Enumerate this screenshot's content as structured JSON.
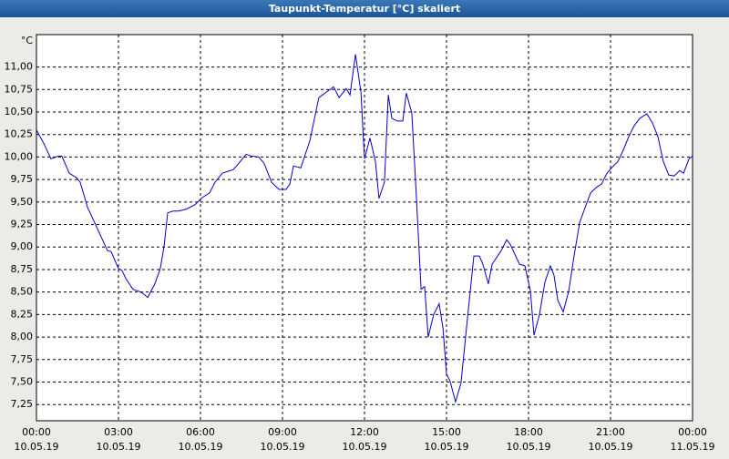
{
  "chart_data": {
    "type": "line",
    "title": "Taupunkt-Temperatur [°C] skaliert",
    "ylabel": "°C",
    "xlim": [
      0,
      24
    ],
    "xticks": [
      {
        "value": 0,
        "label": "00:00\n10.05.19"
      },
      {
        "value": 3,
        "label": "03:00\n10.05.19"
      },
      {
        "value": 6,
        "label": "06:00\n10.05.19"
      },
      {
        "value": 9,
        "label": "09:00\n10.05.19"
      },
      {
        "value": 12,
        "label": "12:00\n10.05.19"
      },
      {
        "value": 15,
        "label": "15:00\n10.05.19"
      },
      {
        "value": 18,
        "label": "18:00\n10.05.19"
      },
      {
        "value": 21,
        "label": "21:00\n10.05.19"
      },
      {
        "value": 24,
        "label": "00:00\n11.05.19"
      }
    ],
    "ylim": [
      7.07,
      11.36
    ],
    "yticks": [
      {
        "value": 7.25,
        "label": "7,25"
      },
      {
        "value": 7.5,
        "label": "7,50"
      },
      {
        "value": 7.75,
        "label": "7,75"
      },
      {
        "value": 8,
        "label": "8,00"
      },
      {
        "value": 8.25,
        "label": "8,25"
      },
      {
        "value": 8.5,
        "label": "8,50"
      },
      {
        "value": 8.75,
        "label": "8,75"
      },
      {
        "value": 9,
        "label": "9,00"
      },
      {
        "value": 9.25,
        "label": "9,25"
      },
      {
        "value": 9.5,
        "label": "9,50"
      },
      {
        "value": 9.75,
        "label": "9,75"
      },
      {
        "value": 10,
        "label": "10,00"
      },
      {
        "value": 10.25,
        "label": "10,25"
      },
      {
        "value": 10.5,
        "label": "10,50"
      },
      {
        "value": 10.75,
        "label": "10,75"
      },
      {
        "value": 11,
        "label": "11,00"
      }
    ],
    "grid": true,
    "x": [
      0,
      0.27,
      0.53,
      0.8,
      0.93,
      1.2,
      1.47,
      1.6,
      1.87,
      2.13,
      2.4,
      2.6,
      2.73,
      3,
      3.13,
      3.27,
      3.53,
      3.73,
      3.87,
      4.07,
      4.33,
      4.53,
      4.67,
      4.8,
      5,
      5.2,
      5.47,
      5.8,
      6.07,
      6.33,
      6.53,
      6.8,
      7.2,
      7.4,
      7.67,
      7.87,
      8.13,
      8.33,
      8.6,
      8.87,
      9.13,
      9.27,
      9.4,
      9.67,
      10,
      10.33,
      10.6,
      10.87,
      11.07,
      11.33,
      11.47,
      11.67,
      11.87,
      12,
      12.2,
      12.4,
      12.53,
      12.73,
      12.87,
      13,
      13.2,
      13.4,
      13.53,
      13.73,
      13.87,
      14.07,
      14.2,
      14.33,
      14.53,
      14.73,
      14.87,
      15,
      15.13,
      15.33,
      15.53,
      15.73,
      16,
      16.2,
      16.33,
      16.53,
      16.67,
      17,
      17.2,
      17.33,
      17.67,
      17.87,
      18.07,
      18.2,
      18.4,
      18.6,
      18.8,
      18.93,
      19.07,
      19.27,
      19.47,
      19.67,
      19.87,
      20.07,
      20.27,
      20.47,
      20.67,
      20.87,
      21.07,
      21.27,
      21.47,
      21.67,
      21.87,
      22.07,
      22.33,
      22.53,
      22.73,
      22.93,
      23.13,
      23.33,
      23.53,
      23.67,
      23.87,
      24
    ],
    "series": [
      {
        "color": "#0000cc",
        "values": [
          10.3,
          10.15,
          9.98,
          10.01,
          10.01,
          9.82,
          9.77,
          9.72,
          9.44,
          9.27,
          9.09,
          8.96,
          8.95,
          8.76,
          8.74,
          8.65,
          8.53,
          8.51,
          8.49,
          8.44,
          8.59,
          8.76,
          9.01,
          9.38,
          9.4,
          9.4,
          9.42,
          9.47,
          9.55,
          9.6,
          9.72,
          9.82,
          9.86,
          9.93,
          10.03,
          10.01,
          10.0,
          9.93,
          9.72,
          9.64,
          9.64,
          9.7,
          9.9,
          9.88,
          10.18,
          10.66,
          10.72,
          10.78,
          10.66,
          10.76,
          10.69,
          11.14,
          10.72,
          9.98,
          10.21,
          9.95,
          9.54,
          9.72,
          10.69,
          10.43,
          10.4,
          10.4,
          10.71,
          10.49,
          9.72,
          8.53,
          8.56,
          8.0,
          8.25,
          8.37,
          8.1,
          7.59,
          7.51,
          7.28,
          7.49,
          8.1,
          8.9,
          8.9,
          8.81,
          8.59,
          8.81,
          8.96,
          9.08,
          9.03,
          8.81,
          8.79,
          8.51,
          8.02,
          8.25,
          8.61,
          8.79,
          8.69,
          8.41,
          8.28,
          8.51,
          8.91,
          9.27,
          9.44,
          9.6,
          9.66,
          9.7,
          9.82,
          9.89,
          9.95,
          10.08,
          10.23,
          10.35,
          10.43,
          10.48,
          10.38,
          10.23,
          9.95,
          9.8,
          9.79,
          9.85,
          9.82,
          9.98,
          10.01
        ]
      }
    ]
  }
}
